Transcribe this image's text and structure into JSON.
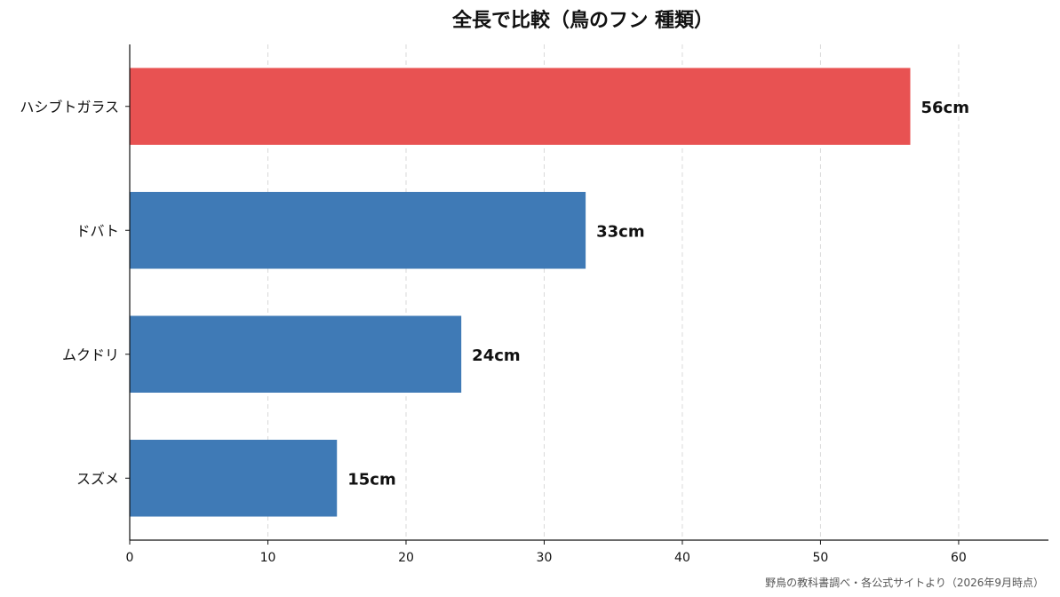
{
  "chart_data": {
    "type": "bar",
    "orientation": "horizontal",
    "title": "全長で比較（鳥のフン 種類）",
    "categories": [
      "ハシブトガラス",
      "ドバト",
      "ムクドリ",
      "スズメ"
    ],
    "values": [
      56.5,
      33,
      24,
      15
    ],
    "data_labels": [
      "56cm",
      "33cm",
      "24cm",
      "15cm"
    ],
    "bar_colors": [
      "#e85252",
      "#3f7ab6",
      "#3f7ab6",
      "#3f7ab6"
    ],
    "xlabel": "",
    "ylabel": "",
    "xlim": [
      0,
      66.5
    ],
    "xticks": [
      0,
      10,
      20,
      30,
      40,
      50,
      60
    ],
    "grid": "vertical dashed",
    "legend": "none",
    "source_note": "野鳥の教科書調べ・各公式サイトより（2026年9月時点）"
  }
}
